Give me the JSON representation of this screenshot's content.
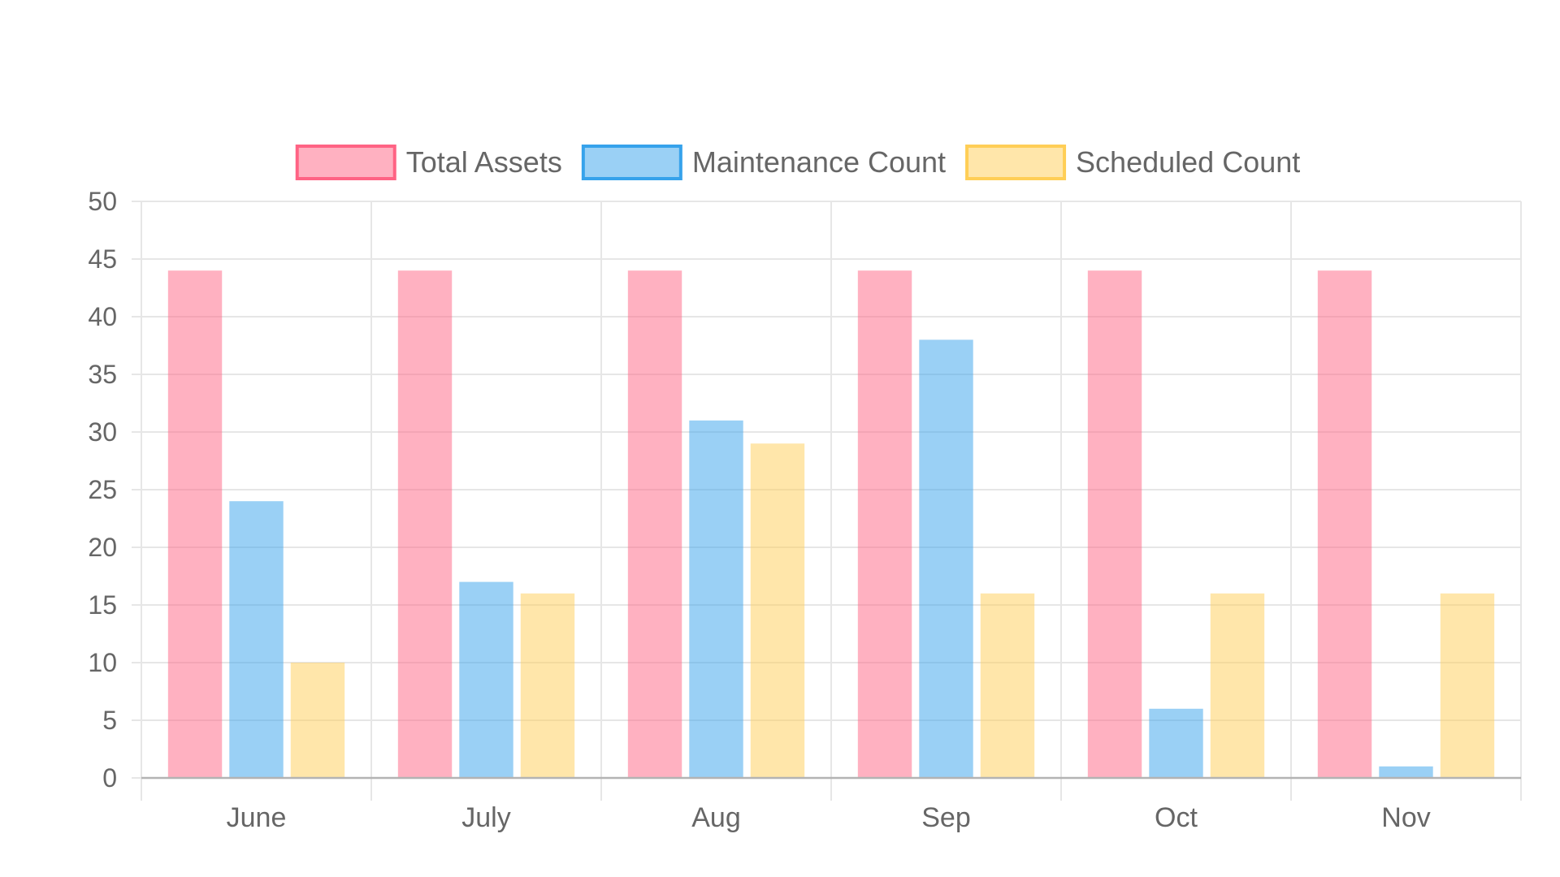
{
  "chart_data": {
    "type": "bar",
    "categories": [
      "June",
      "July",
      "Aug",
      "Sep",
      "Oct",
      "Nov"
    ],
    "series": [
      {
        "name": "Total Assets",
        "values": [
          44,
          44,
          44,
          44,
          44,
          44
        ],
        "fill": "#ff6384",
        "border": "#ff6384"
      },
      {
        "name": "Maintenance Count",
        "values": [
          24,
          17,
          31,
          38,
          6,
          1
        ],
        "fill": "#36a2eb",
        "border": "#36a2eb"
      },
      {
        "name": "Scheduled Count",
        "values": [
          10,
          16,
          29,
          16,
          16,
          16
        ],
        "fill": "#ffce56",
        "border": "#ffce56"
      }
    ],
    "title": "",
    "xlabel": "",
    "ylabel": "",
    "ylim": [
      0,
      50
    ],
    "ytick_step": 5,
    "yticks": [
      "0",
      "5",
      "10",
      "15",
      "20",
      "25",
      "30",
      "35",
      "40",
      "45",
      "50"
    ],
    "grid": true,
    "legend_position": "top"
  }
}
